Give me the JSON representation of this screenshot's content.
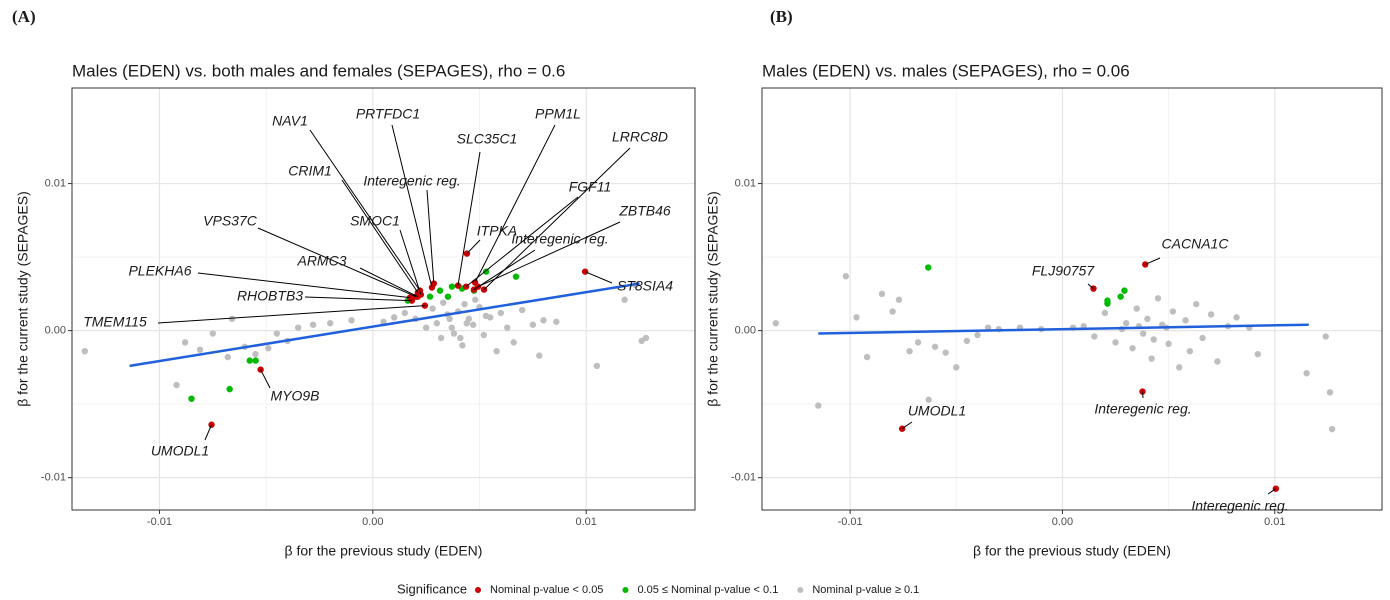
{
  "chart_data": [
    {
      "type": "scatter",
      "panel": "(A)",
      "title": "Males (EDEN) vs. both males and females (SEPAGES), rho = 0.6",
      "x_label": "β for the previous study (EDEN)",
      "y_label": "β for the current study (SEPAGES)",
      "legend_title": "Significance",
      "grid": true,
      "xlim": [
        -0.0141,
        0.0151
      ],
      "ylim": [
        -0.0122,
        0.0165
      ],
      "xticks": [
        -0.01,
        {
          "value": 0,
          "label": "0.00"
        },
        0.01
      ],
      "yticks": [
        -0.01,
        {
          "value": 0,
          "label": "0.00"
        },
        0.01
      ],
      "series": [
        {
          "name": "Nominal p-value < 0.05",
          "color": "#cc0000",
          "x": [
            0.00221,
            0.00277,
            0.00479,
            0.00399,
            0.00521,
            0.00211,
            0.00286,
            0.00437,
            0.00493,
            0.00225,
            0.00202,
            0.00441,
            0.00474,
            0.00211,
            0.00174,
            0.00183,
            0.00244,
            0.00995,
            -0.00526,
            -0.00756
          ],
          "values": [
            0.00272,
            0.00293,
            0.00327,
            0.00306,
            0.00279,
            0.00259,
            0.0032,
            0.00299,
            0.00299,
            0.00245,
            0.00231,
            0.00524,
            0.00279,
            0.00231,
            0.00224,
            0.00204,
            0.0017,
            0.00401,
            -0.00265,
            -0.0064
          ],
          "point_labels": [
            "NAV1",
            "PRTFDC1",
            "PPM1L",
            "SLC35C1",
            "LRRC8D",
            "CRIM1",
            "Interegenic reg.",
            "FGF11",
            "ZBTB46",
            "SMOC1",
            "VPS37C",
            "ITPKA",
            "Interegenic reg.",
            "ARMC3",
            "PLEKHA6",
            "RHOBTB3",
            "TMEM115",
            "ST8SIA4",
            "MYO9B",
            "UMODL1"
          ]
        },
        {
          "name": "0.05 ≤ Nominal p-value < 0.1",
          "color": "#00bb00",
          "x": [
            -0.0085,
            -0.00671,
            -0.00577,
            -0.00549,
            0.00164,
            0.00268,
            0.00315,
            0.00371,
            0.00418,
            0.00531,
            0.00474,
            0.00671,
            0.00352
          ],
          "values": [
            -0.00463,
            -0.00398,
            -0.00204,
            -0.00204,
            0.00204,
            0.00231,
            0.00272,
            0.00299,
            0.00286,
            0.00401,
            0.00272,
            0.00367,
            0.00231
          ]
        },
        {
          "name": "Nominal p-value ≥ 0.1",
          "color": "#bebebe",
          "x": [
            -0.0135,
            -0.0092,
            -0.0088,
            -0.0081,
            -0.0075,
            -0.0068,
            -0.0066,
            -0.006,
            -0.0055,
            -0.0049,
            -0.0045,
            -0.004,
            -0.0035,
            -0.0028,
            -0.002,
            -0.001,
            0.0005,
            0.001,
            0.0015,
            0.002,
            0.0025,
            0.0028,
            0.003,
            0.0032,
            0.0035,
            0.0037,
            0.004,
            0.0042,
            0.0045,
            0.0047,
            0.005,
            0.0052,
            0.0055,
            0.0058,
            0.006,
            0.0063,
            0.0066,
            0.007,
            0.0075,
            0.008,
            0.0078,
            0.0086,
            0.0105,
            0.0126,
            0.0128,
            0.0123,
            0.0118,
            0.0043,
            0.0038,
            0.0048,
            0.0033,
            0.0053,
            0.0044,
            0.0041,
            0.0036
          ],
          "values": [
            -0.0014,
            -0.0037,
            -0.0008,
            -0.0013,
            -0.0002,
            -0.0018,
            0.0008,
            -0.0011,
            -0.0016,
            -0.0012,
            -0.0002,
            -0.0007,
            0.0002,
            0.0004,
            0.0005,
            0.0007,
            0.0006,
            0.0009,
            0.0012,
            0.0008,
            0.0002,
            0.0015,
            0.0005,
            -0.0005,
            0.0011,
            0.0002,
            0.0013,
            -0.001,
            0.0008,
            0.0004,
            0.0016,
            -0.0003,
            0.0009,
            -0.0014,
            0.0012,
            0.0002,
            -0.0008,
            0.0014,
            0.0004,
            0.0007,
            -0.0017,
            0.0006,
            -0.0024,
            -0.0007,
            -0.0005,
            0.0031,
            0.0021,
            0.0018,
            -0.0002,
            0.0021,
            0.0019,
            0.001,
            0.0005,
            -0.0005,
            0.0008
          ]
        }
      ],
      "fit": {
        "color": "#2060dd",
        "x": [
          -0.0114,
          0.0125
        ],
        "values": [
          -0.0024,
          0.0032
        ]
      }
    },
    {
      "type": "scatter",
      "panel": "(B)",
      "title": "Males (EDEN) vs. males (SEPAGES), rho = 0.06",
      "x_label": "β for the previous study (EDEN)",
      "y_label": "β for the current study (SEPAGES)",
      "grid": true,
      "xlim": [
        -0.01415,
        0.01505
      ],
      "ylim": [
        -0.0122,
        0.0165
      ],
      "xticks": [
        -0.01,
        {
          "value": 0,
          "label": "0.00"
        },
        0.01
      ],
      "yticks": [
        -0.01,
        {
          "value": 0,
          "label": "0.00"
        },
        0.01
      ],
      "series": [
        {
          "name": "Nominal p-value < 0.05",
          "color": "#cc0000",
          "x": [
            -0.00755,
            0.00146,
            0.0039,
            0.00377,
            0.01005
          ],
          "values": [
            -0.00667,
            0.00286,
            0.0045,
            -0.00415,
            -0.01075
          ],
          "point_labels": [
            "UMODL1",
            "FLJ90757",
            "CACNA1C",
            "Interegenic reg.",
            "Interegenic reg."
          ]
        },
        {
          "name": "0.05 ≤ Nominal p-value < 0.1",
          "color": "#00bb00",
          "x": [
            -0.00632,
            0.00212,
            0.00212,
            0.00292,
            0.00274
          ],
          "values": [
            0.00429,
            0.00204,
            0.00184,
            0.00272,
            0.00231
          ]
        },
        {
          "name": "Nominal p-value ≥ 0.1",
          "color": "#bebebe",
          "x": [
            -0.0135,
            -0.0115,
            -0.0102,
            -0.0097,
            -0.0092,
            -0.0085,
            -0.008,
            -0.0077,
            -0.0072,
            -0.0068,
            -0.0063,
            -0.006,
            -0.0055,
            -0.005,
            -0.0045,
            -0.004,
            -0.0035,
            -0.003,
            -0.002,
            -0.001,
            0.0005,
            0.001,
            0.0015,
            0.002,
            0.0025,
            0.003,
            0.0033,
            0.0035,
            0.0038,
            0.004,
            0.0042,
            0.0045,
            0.0047,
            0.005,
            0.0052,
            0.0055,
            0.0058,
            0.006,
            0.0063,
            0.0066,
            0.007,
            0.0073,
            0.0078,
            0.0082,
            0.0088,
            0.0092,
            0.0115,
            0.0126,
            0.0127,
            0.0124,
            0.0036,
            0.0043,
            0.0028,
            0.0049
          ],
          "values": [
            0.0005,
            -0.0051,
            0.0037,
            0.0009,
            -0.0018,
            0.0025,
            0.0013,
            0.0021,
            -0.0014,
            -0.0008,
            -0.0047,
            -0.0011,
            -0.0015,
            -0.0025,
            -0.0007,
            -0.0003,
            0.0002,
            0.0001,
            0.0002,
            0.0001,
            0.0002,
            0.0003,
            -0.0004,
            0.0012,
            -0.0008,
            0.0005,
            -0.0012,
            0.0015,
            -0.0002,
            0.0008,
            -0.0019,
            0.0022,
            0.0004,
            -0.0009,
            0.0013,
            -0.0025,
            0.0007,
            -0.0014,
            0.0018,
            -0.0005,
            0.0011,
            -0.0021,
            0.0003,
            0.0009,
            0.0002,
            -0.0016,
            -0.0029,
            -0.0042,
            -0.0067,
            -0.0004,
            0.0003,
            -0.0006,
            0.0001,
            0.0002
          ]
        }
      ],
      "fit": {
        "color": "#2060dd",
        "x": [
          -0.0115,
          0.0116
        ],
        "values": [
          -0.0002,
          0.0004
        ]
      }
    }
  ]
}
